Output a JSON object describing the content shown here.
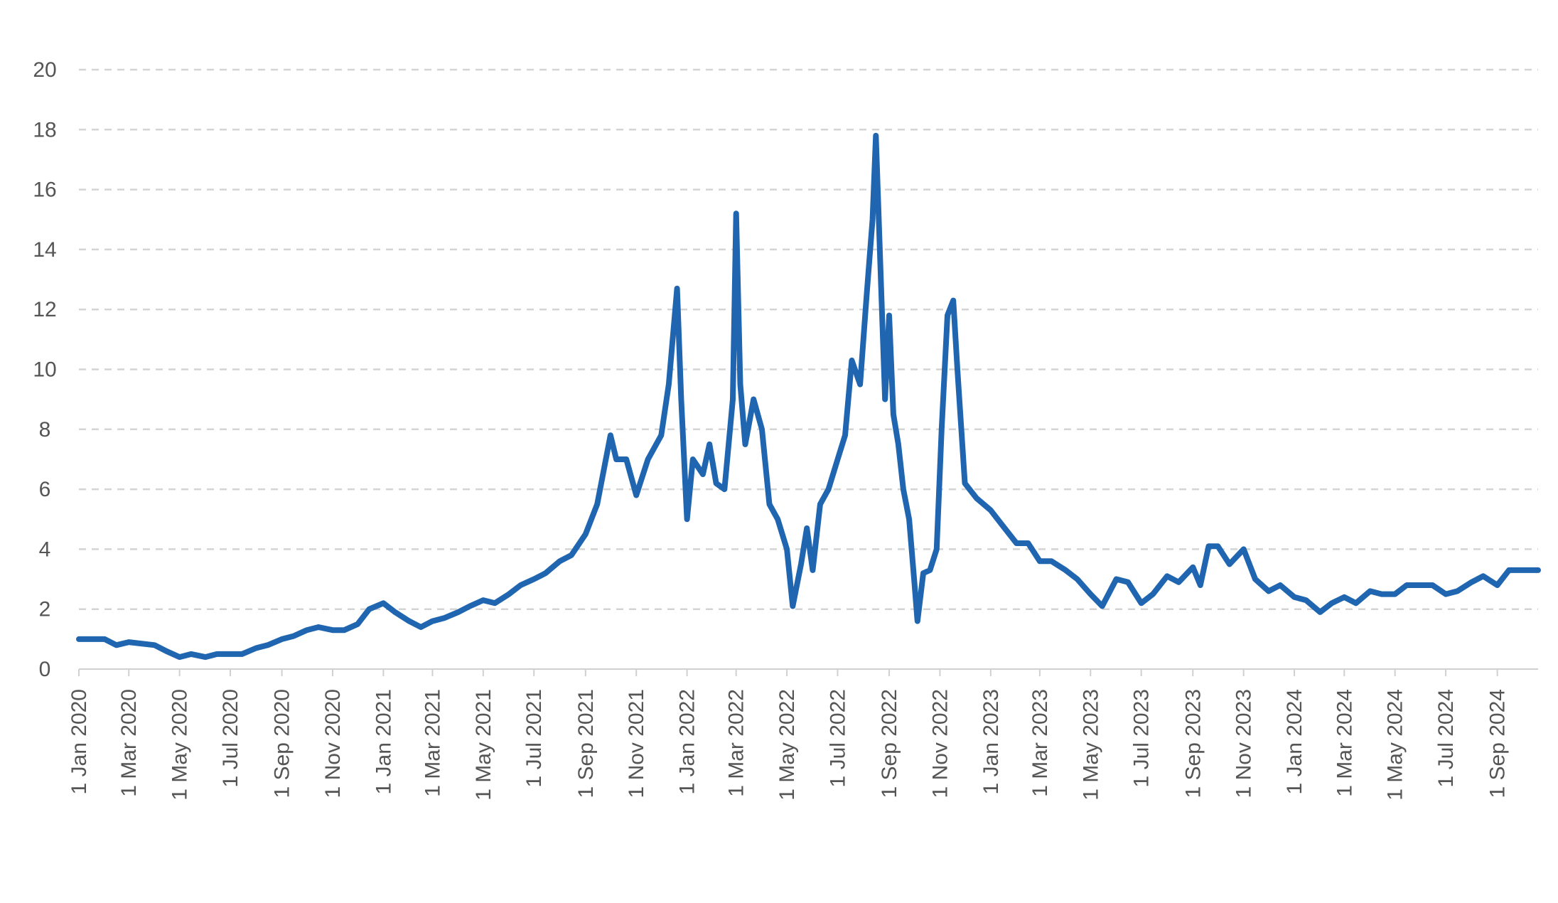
{
  "chart_data": {
    "type": "line",
    "x": [
      "2020-01-01",
      "2020-02-01",
      "2020-02-15",
      "2020-03-01",
      "2020-04-01",
      "2020-04-15",
      "2020-05-01",
      "2020-05-15",
      "2020-06-01",
      "2020-06-15",
      "2020-07-01",
      "2020-07-15",
      "2020-08-01",
      "2020-08-15",
      "2020-09-01",
      "2020-09-15",
      "2020-10-01",
      "2020-10-15",
      "2020-11-01",
      "2020-11-15",
      "2020-12-01",
      "2020-12-15",
      "2021-01-01",
      "2021-01-15",
      "2021-02-01",
      "2021-02-15",
      "2021-03-01",
      "2021-03-15",
      "2021-04-01",
      "2021-04-15",
      "2021-05-01",
      "2021-05-15",
      "2021-06-01",
      "2021-06-15",
      "2021-07-01",
      "2021-07-15",
      "2021-08-01",
      "2021-08-15",
      "2021-09-01",
      "2021-09-15",
      "2021-10-01",
      "2021-10-08",
      "2021-10-20",
      "2021-11-01",
      "2021-11-15",
      "2021-12-01",
      "2021-12-10",
      "2021-12-20",
      "2021-12-25",
      "2022-01-01",
      "2022-01-08",
      "2022-01-20",
      "2022-01-28",
      "2022-02-05",
      "2022-02-15",
      "2022-02-25",
      "2022-03-01",
      "2022-03-06",
      "2022-03-12",
      "2022-03-22",
      "2022-04-01",
      "2022-04-10",
      "2022-04-20",
      "2022-05-01",
      "2022-05-08",
      "2022-05-18",
      "2022-05-25",
      "2022-06-01",
      "2022-06-10",
      "2022-06-20",
      "2022-07-01",
      "2022-07-10",
      "2022-07-18",
      "2022-07-28",
      "2022-08-05",
      "2022-08-12",
      "2022-08-16",
      "2022-08-22",
      "2022-08-27",
      "2022-09-01",
      "2022-09-06",
      "2022-09-12",
      "2022-09-18",
      "2022-09-25",
      "2022-10-01",
      "2022-10-05",
      "2022-10-12",
      "2022-10-20",
      "2022-10-28",
      "2022-11-03",
      "2022-11-10",
      "2022-11-17",
      "2022-11-22",
      "2022-12-01",
      "2022-12-15",
      "2023-01-01",
      "2023-01-15",
      "2023-02-01",
      "2023-02-15",
      "2023-03-01",
      "2023-03-15",
      "2023-04-01",
      "2023-04-15",
      "2023-05-01",
      "2023-05-15",
      "2023-06-01",
      "2023-06-15",
      "2023-07-01",
      "2023-07-15",
      "2023-08-01",
      "2023-08-15",
      "2023-09-01",
      "2023-09-10",
      "2023-09-20",
      "2023-10-01",
      "2023-10-15",
      "2023-11-01",
      "2023-11-15",
      "2023-12-01",
      "2023-12-15",
      "2024-01-01",
      "2024-01-15",
      "2024-02-01",
      "2024-02-15",
      "2024-03-01",
      "2024-03-15",
      "2024-04-01",
      "2024-04-15",
      "2024-05-01",
      "2024-05-15",
      "2024-06-01",
      "2024-06-15",
      "2024-07-01",
      "2024-07-15",
      "2024-08-01",
      "2024-08-15",
      "2024-09-01",
      "2024-09-15",
      "2024-10-01",
      "2024-10-20"
    ],
    "values": [
      1.0,
      1.0,
      0.8,
      0.9,
      0.8,
      0.6,
      0.4,
      0.5,
      0.4,
      0.5,
      0.5,
      0.5,
      0.7,
      0.8,
      1.0,
      1.1,
      1.3,
      1.4,
      1.3,
      1.3,
      1.5,
      2.0,
      2.2,
      1.9,
      1.6,
      1.4,
      1.6,
      1.7,
      1.9,
      2.1,
      2.3,
      2.2,
      2.5,
      2.8,
      3.0,
      3.2,
      3.6,
      3.8,
      4.5,
      5.5,
      7.8,
      7.0,
      7.0,
      5.8,
      7.0,
      7.8,
      9.5,
      12.7,
      9.0,
      5.0,
      7.0,
      6.5,
      7.5,
      6.2,
      6.0,
      9.0,
      15.2,
      9.5,
      7.5,
      9.0,
      8.0,
      5.5,
      5.0,
      4.0,
      2.1,
      3.5,
      4.7,
      3.3,
      5.5,
      6.0,
      7.0,
      7.8,
      10.3,
      9.5,
      12.5,
      15.0,
      17.8,
      13.0,
      9.0,
      11.8,
      8.5,
      7.5,
      6.0,
      5.0,
      3.0,
      1.6,
      3.2,
      3.3,
      4.0,
      8.0,
      11.8,
      12.3,
      10.0,
      6.2,
      5.7,
      5.3,
      4.8,
      4.2,
      4.2,
      3.6,
      3.6,
      3.3,
      3.0,
      2.5,
      2.1,
      3.0,
      2.9,
      2.2,
      2.5,
      3.1,
      2.9,
      3.4,
      2.8,
      4.1,
      4.1,
      3.5,
      4.0,
      3.0,
      2.6,
      2.8,
      2.4,
      2.3,
      1.9,
      2.2,
      2.4,
      2.2,
      2.6,
      2.5,
      2.5,
      2.8,
      2.8,
      2.8,
      2.5,
      2.6,
      2.9,
      3.1,
      2.8,
      3.3,
      3.3,
      3.3
    ],
    "color": "#1f65b0",
    "xlim": [
      "2020-01-01",
      "2024-10-20"
    ],
    "xticks": [
      {
        "value": "2020-01-01",
        "label": "1 Jan 2020"
      },
      {
        "value": "2020-03-01",
        "label": "1 Mar 2020"
      },
      {
        "value": "2020-05-01",
        "label": "1 May 2020"
      },
      {
        "value": "2020-07-01",
        "label": "1 Jul 2020"
      },
      {
        "value": "2020-09-01",
        "label": "1 Sep 2020"
      },
      {
        "value": "2020-11-01",
        "label": "1 Nov 2020"
      },
      {
        "value": "2021-01-01",
        "label": "1 Jan 2021"
      },
      {
        "value": "2021-03-01",
        "label": "1 Mar 2021"
      },
      {
        "value": "2021-05-01",
        "label": "1 May 2021"
      },
      {
        "value": "2021-07-01",
        "label": "1 Jul 2021"
      },
      {
        "value": "2021-09-01",
        "label": "1 Sep 2021"
      },
      {
        "value": "2021-11-01",
        "label": "1 Nov 2021"
      },
      {
        "value": "2022-01-01",
        "label": "1 Jan 2022"
      },
      {
        "value": "2022-03-01",
        "label": "1 Mar 2022"
      },
      {
        "value": "2022-05-01",
        "label": "1 May 2022"
      },
      {
        "value": "2022-07-01",
        "label": "1 Jul 2022"
      },
      {
        "value": "2022-09-01",
        "label": "1 Sep 2022"
      },
      {
        "value": "2022-11-01",
        "label": "1 Nov 2022"
      },
      {
        "value": "2023-01-01",
        "label": "1 Jan 2023"
      },
      {
        "value": "2023-03-01",
        "label": "1 Mar 2023"
      },
      {
        "value": "2023-05-01",
        "label": "1 May 2023"
      },
      {
        "value": "2023-07-01",
        "label": "1 Jul 2023"
      },
      {
        "value": "2023-09-01",
        "label": "1 Sep 2023"
      },
      {
        "value": "2023-11-01",
        "label": "1 Nov 2023"
      },
      {
        "value": "2024-01-01",
        "label": "1 Jan 2024"
      },
      {
        "value": "2024-03-01",
        "label": "1 Mar 2024"
      },
      {
        "value": "2024-05-01",
        "label": "1 May 2024"
      },
      {
        "value": "2024-07-01",
        "label": "1 Jul 2024"
      },
      {
        "value": "2024-09-01",
        "label": "1 Sep 2024"
      }
    ],
    "ylim": [
      0,
      20
    ],
    "yticks": [
      0,
      2,
      4,
      6,
      8,
      10,
      12,
      14,
      16,
      18,
      20
    ],
    "grid": true
  }
}
